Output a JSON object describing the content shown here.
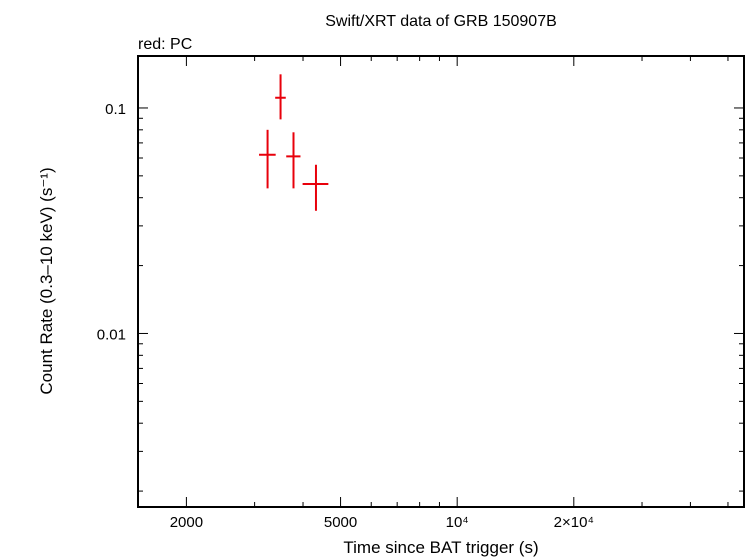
{
  "chart_data": {
    "type": "scatter",
    "title": "Swift/XRT data of GRB 150907B",
    "subtitle": "red: PC",
    "xlabel": "Time since BAT trigger (s)",
    "ylabel": "Count Rate (0.3–10 keV) (s⁻¹)",
    "x_scale": "log",
    "y_scale": "log",
    "xlim": [
      1500,
      55000
    ],
    "ylim": [
      0.0017,
      0.17
    ],
    "grid": false,
    "x_ticks": [
      {
        "value": 2000,
        "label": "2000"
      },
      {
        "value": 5000,
        "label": "5000"
      },
      {
        "value": 10000,
        "label": "10⁴"
      },
      {
        "value": 20000,
        "label": "2×10⁴"
      }
    ],
    "y_ticks": [
      {
        "value": 0.1,
        "label": "0.1"
      },
      {
        "value": 0.01,
        "label": "0.01"
      }
    ],
    "series": [
      {
        "color": "#e8000b",
        "points": [
          {
            "x": 3240,
            "xerr": [
              160,
              160
            ],
            "y": 0.062,
            "yerr": [
              0.018,
              0.018
            ]
          },
          {
            "x": 3500,
            "xerr": [
              110,
              110
            ],
            "y": 0.111,
            "yerr": [
              0.022,
              0.03
            ]
          },
          {
            "x": 3780,
            "xerr": [
              160,
              160
            ],
            "y": 0.061,
            "yerr": [
              0.017,
              0.017
            ]
          },
          {
            "x": 4320,
            "xerr": [
              330,
              330
            ],
            "y": 0.046,
            "yerr": [
              0.011,
              0.01
            ]
          }
        ]
      }
    ]
  }
}
